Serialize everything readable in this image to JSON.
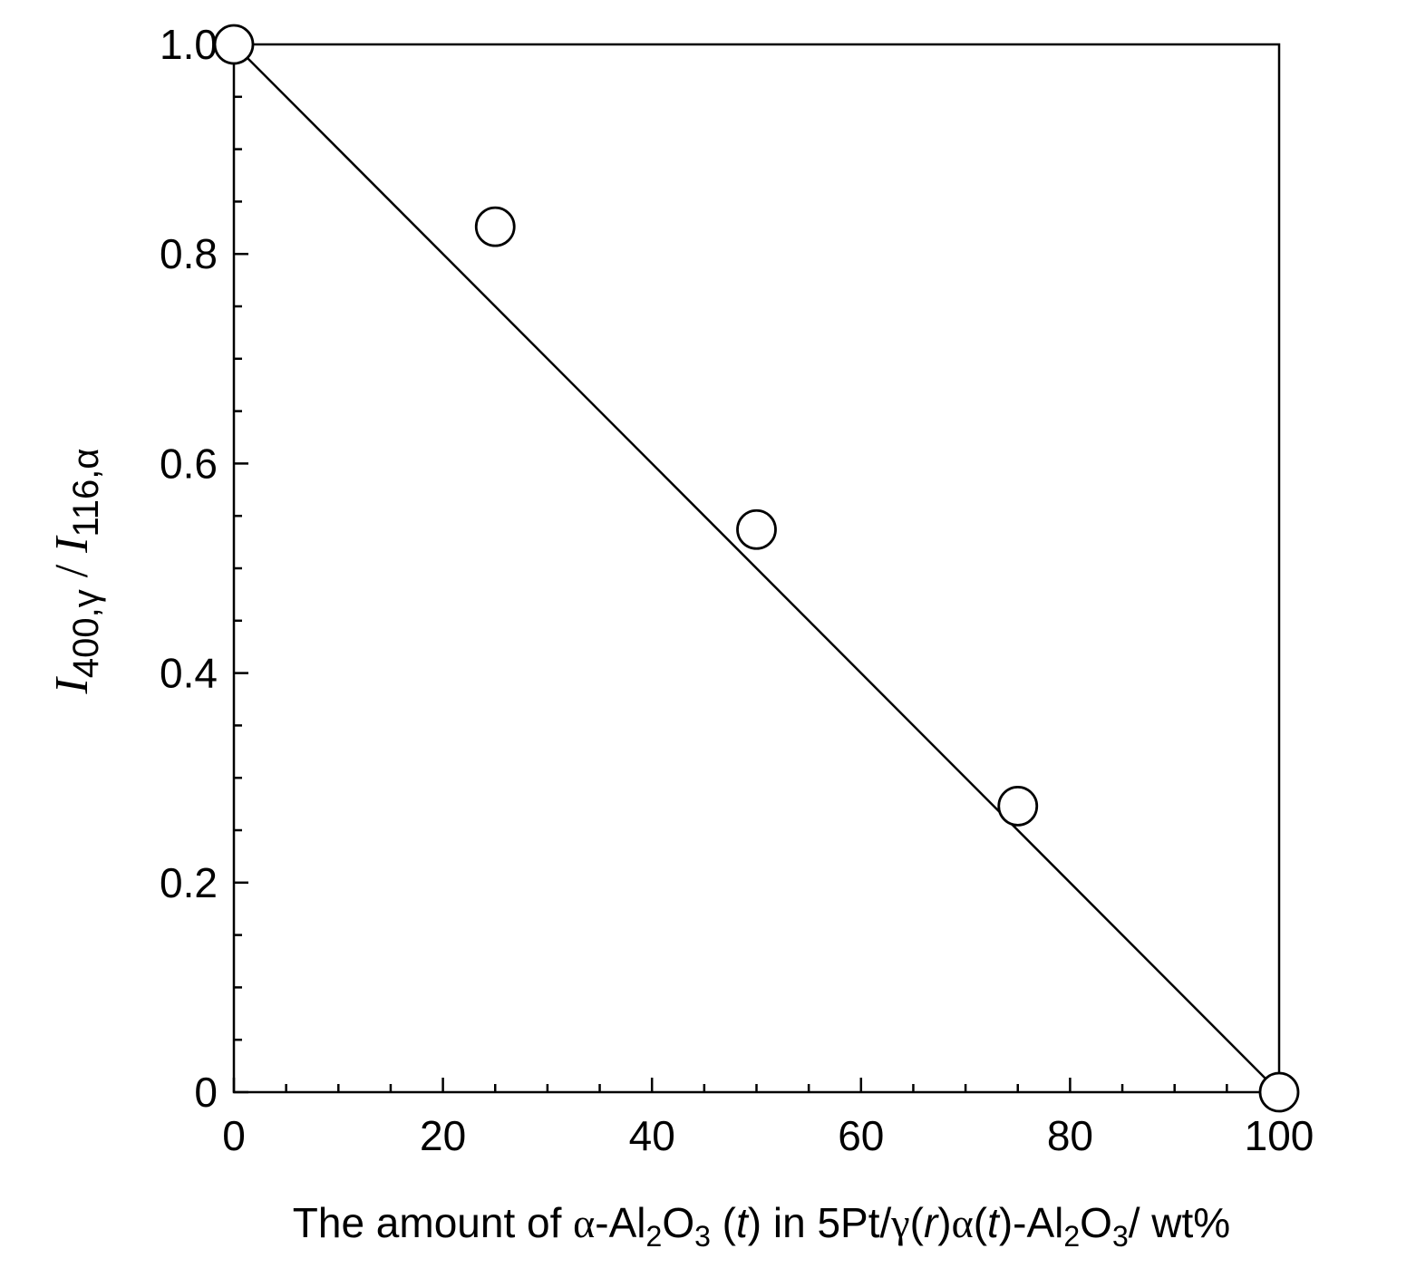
{
  "chart_data": {
    "type": "scatter",
    "title": "",
    "xlim": [
      0,
      100
    ],
    "ylim": [
      0,
      1.0
    ],
    "x_major_ticks": [
      0,
      20,
      40,
      60,
      80,
      100
    ],
    "x_tick_labels": [
      "0",
      "20",
      "40",
      "60",
      "80",
      "100"
    ],
    "x_minor_step": 5,
    "y_major_ticks": [
      0,
      0.2,
      0.4,
      0.6,
      0.8,
      1.0
    ],
    "y_tick_labels": [
      "0",
      "0.2",
      "0.4",
      "0.6",
      "0.8",
      "1.0"
    ],
    "y_minor_step": 0.05,
    "grid": false,
    "xlabel": {
      "parts": [
        "The amount of ",
        "α",
        "-Al",
        "2",
        "O",
        "3",
        " (",
        "t",
        ") in 5Pt/",
        "γ",
        "(",
        "r",
        ")",
        "α",
        "(",
        "t",
        ")-Al",
        "2",
        "O",
        "3",
        "/ wt%"
      ]
    },
    "ylabel": {
      "parts": [
        "I",
        "400,γ",
        " / ",
        "I",
        "116,α"
      ]
    },
    "series": [
      {
        "marker": "open-circle",
        "x": [
          0,
          25,
          50,
          75,
          100
        ],
        "y": [
          1.0,
          0.826,
          0.537,
          0.273,
          0.0
        ]
      }
    ],
    "fit_line": {
      "x": [
        0,
        100
      ],
      "y": [
        1.0,
        0.0
      ]
    },
    "colors": {
      "line": "#000000",
      "marker_fill": "#ffffff",
      "marker_stroke": "#000000"
    }
  }
}
